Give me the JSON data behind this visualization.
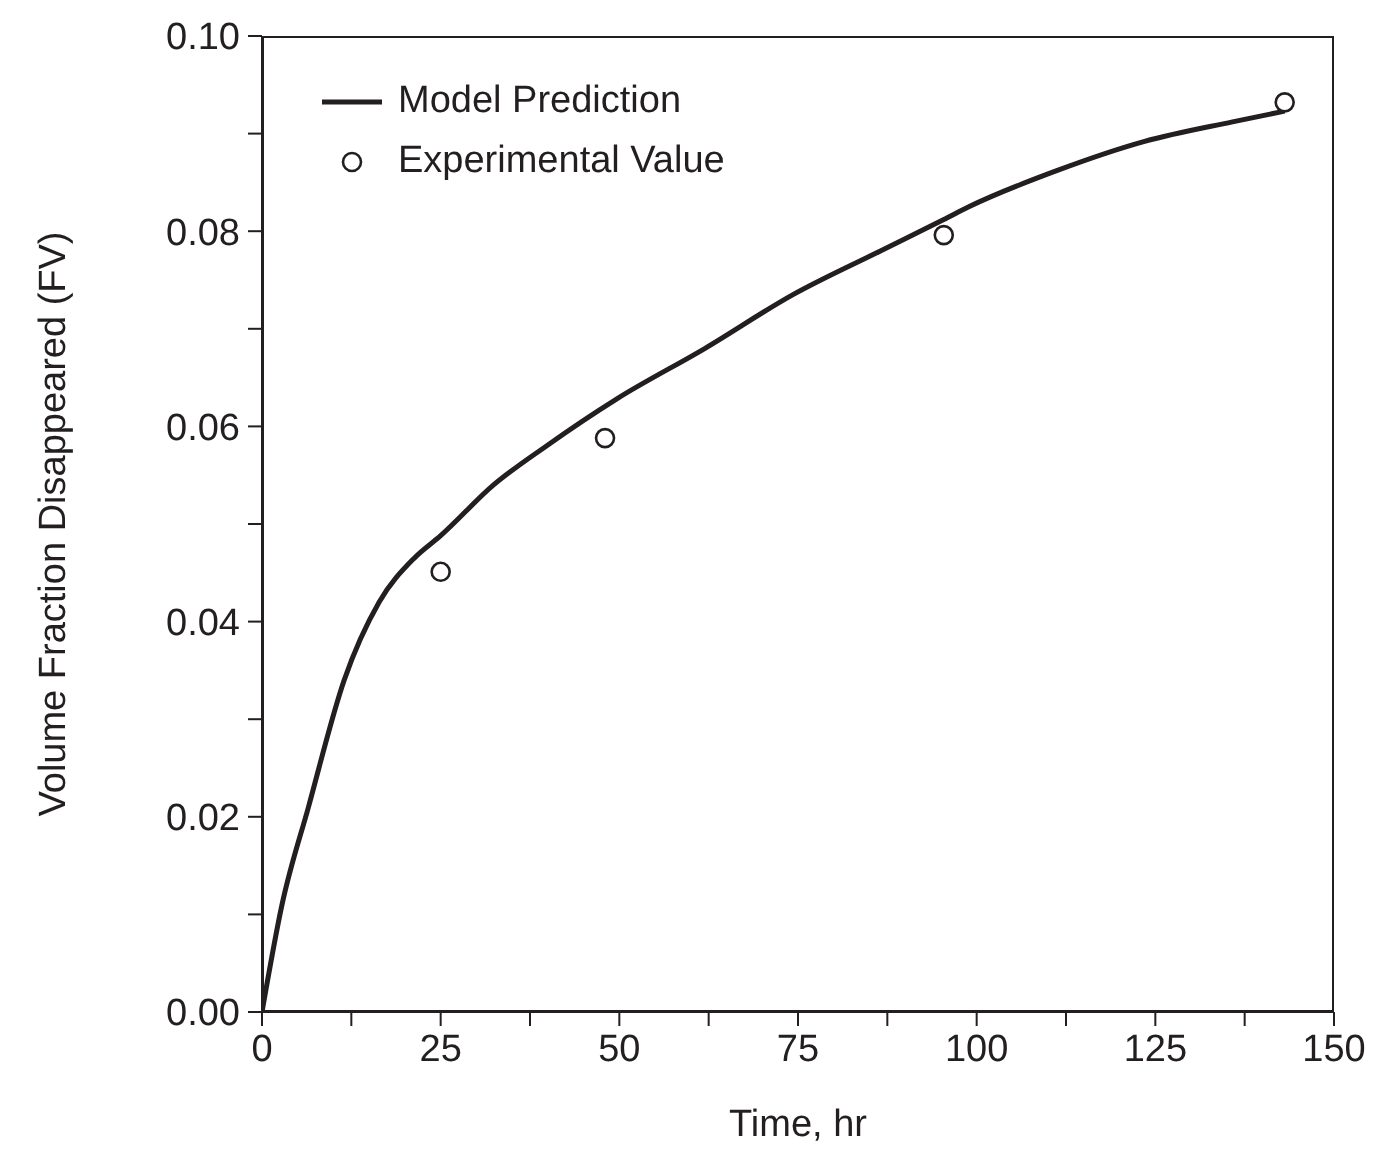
{
  "chart_data": {
    "type": "line",
    "xlabel": "Time, hr",
    "ylabel": "Volume Fraction Disappeared (FV)",
    "xlim": [
      0,
      150
    ],
    "ylim": [
      0,
      0.1
    ],
    "xticks": [
      0,
      {
        "value": 12.5,
        "label": null
      },
      25,
      {
        "value": 37.5,
        "label": null
      },
      50,
      {
        "value": 62.5,
        "label": null
      },
      75,
      {
        "value": 87.5,
        "label": null
      },
      100,
      {
        "value": 112.5,
        "label": null
      },
      125,
      {
        "value": 137.5,
        "label": null
      },
      150
    ],
    "yticks": [
      "0.00",
      {
        "value": 0.01,
        "label": null
      },
      {
        "value": 0.02,
        "label": "0.02"
      },
      {
        "value": 0.03,
        "label": null
      },
      {
        "value": 0.04,
        "label": "0.04"
      },
      {
        "value": 0.05,
        "label": null
      },
      {
        "value": 0.06,
        "label": "0.06"
      },
      {
        "value": 0.07,
        "label": null
      },
      {
        "value": 0.08,
        "label": "0.08"
      },
      {
        "value": 0.09,
        "label": null
      },
      {
        "value": 0.1,
        "label": "0.10"
      }
    ],
    "legend": "top left",
    "grid": false,
    "series": [
      {
        "name": "Model Prediction",
        "type": "line",
        "color": "#231f20",
        "marker": "none",
        "line_style": "solid",
        "x": [
          0,
          2.8,
          6.5,
          11.5,
          16.4,
          21.3,
          25,
          32.4,
          39.8,
          49.6,
          62,
          74.3,
          86.6,
          95.4,
          98.9,
          111.2,
          123.5,
          135.8,
          143.1
        ],
        "values": [
          0,
          0.011,
          0.021,
          0.034,
          0.042,
          0.0465,
          0.0488,
          0.054,
          0.058,
          0.0628,
          0.068,
          0.0735,
          0.078,
          0.0812,
          0.0825,
          0.0862,
          0.0892,
          0.0912,
          0.0923
        ]
      },
      {
        "name": "Experimental Value",
        "type": "scatter",
        "color": "#231f20",
        "marker": "circle",
        "x": [
          25,
          48,
          95.4,
          143.1
        ],
        "values": [
          0.0451,
          0.0588,
          0.0796,
          0.0932
        ]
      }
    ]
  }
}
